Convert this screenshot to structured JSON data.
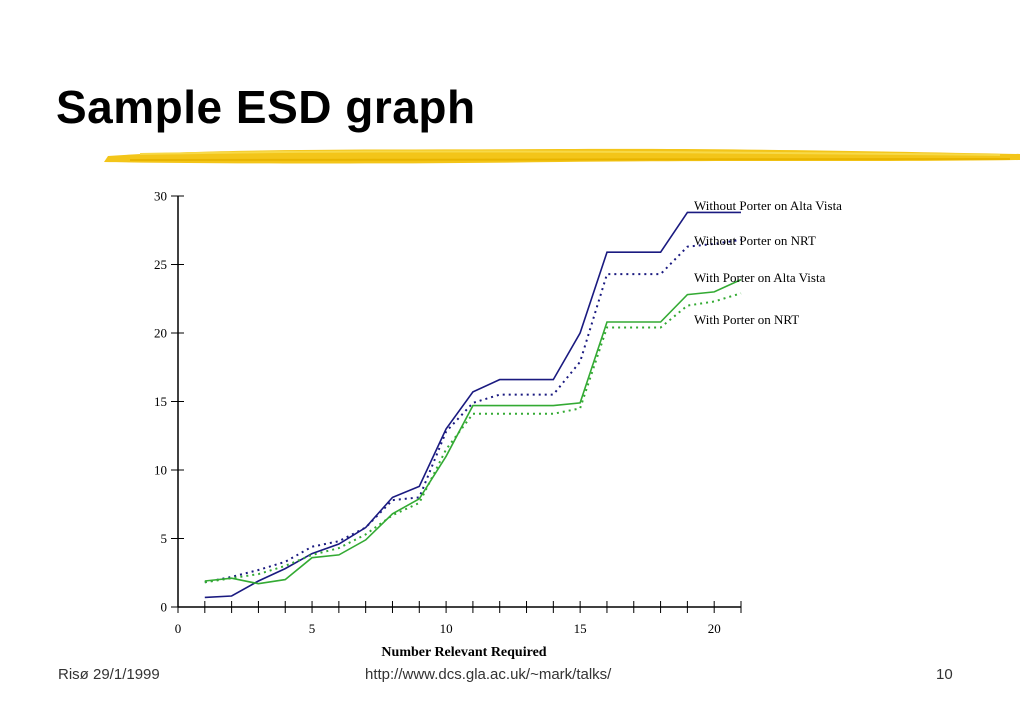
{
  "slide": {
    "title": "Sample ESD graph",
    "footer_left": "Risø 29/1/1999",
    "footer_center": "http://www.dcs.gla.ac.uk/~mark/talks/",
    "page_number": "10"
  },
  "chart_data": {
    "type": "line",
    "title": "",
    "xlabel": "Number Relevant Required",
    "ylabel": "",
    "xlim": [
      0,
      21
    ],
    "ylim": [
      0,
      30
    ],
    "x_ticks": [
      0,
      5,
      10,
      15,
      20
    ],
    "y_ticks": [
      0,
      5,
      10,
      15,
      20,
      25,
      30
    ],
    "grid": false,
    "legend": "labels at line ends, top-right",
    "x": [
      1,
      2,
      3,
      4,
      5,
      6,
      7,
      8,
      9,
      10,
      11,
      12,
      13,
      14,
      15,
      16,
      17,
      18,
      19,
      20,
      21
    ],
    "series": [
      {
        "name": "Without Porter on Alta Vista",
        "color": "#1a1a80",
        "dash": "solid",
        "values": [
          0.7,
          0.8,
          1.9,
          2.8,
          3.9,
          4.6,
          5.8,
          8.0,
          8.8,
          13.0,
          15.7,
          16.6,
          16.6,
          16.6,
          20.0,
          25.9,
          25.9,
          25.9,
          28.8,
          28.8,
          28.8
        ]
      },
      {
        "name": "Without Porter on NRT",
        "color": "#1a1a80",
        "dash": "dotted",
        "values": [
          1.8,
          2.2,
          2.7,
          3.3,
          4.4,
          4.8,
          5.8,
          7.8,
          8.0,
          12.8,
          14.9,
          15.5,
          15.5,
          15.5,
          17.9,
          24.3,
          24.3,
          24.3,
          26.3,
          26.5,
          26.8
        ]
      },
      {
        "name": "With Porter on Alta Vista",
        "color": "#33aa33",
        "dash": "solid",
        "values": [
          1.9,
          2.1,
          1.7,
          2.0,
          3.6,
          3.8,
          4.9,
          6.8,
          7.9,
          11.0,
          14.7,
          14.7,
          14.7,
          14.7,
          14.9,
          20.8,
          20.8,
          20.8,
          22.8,
          23.0,
          23.9
        ]
      },
      {
        "name": "With Porter on NRT",
        "color": "#33aa33",
        "dash": "dotted",
        "values": [
          1.8,
          2.1,
          2.4,
          3.0,
          3.8,
          4.3,
          5.3,
          6.7,
          7.6,
          11.5,
          14.1,
          14.1,
          14.1,
          14.1,
          14.5,
          20.4,
          20.4,
          20.4,
          22.0,
          22.3,
          22.9
        ]
      }
    ]
  }
}
